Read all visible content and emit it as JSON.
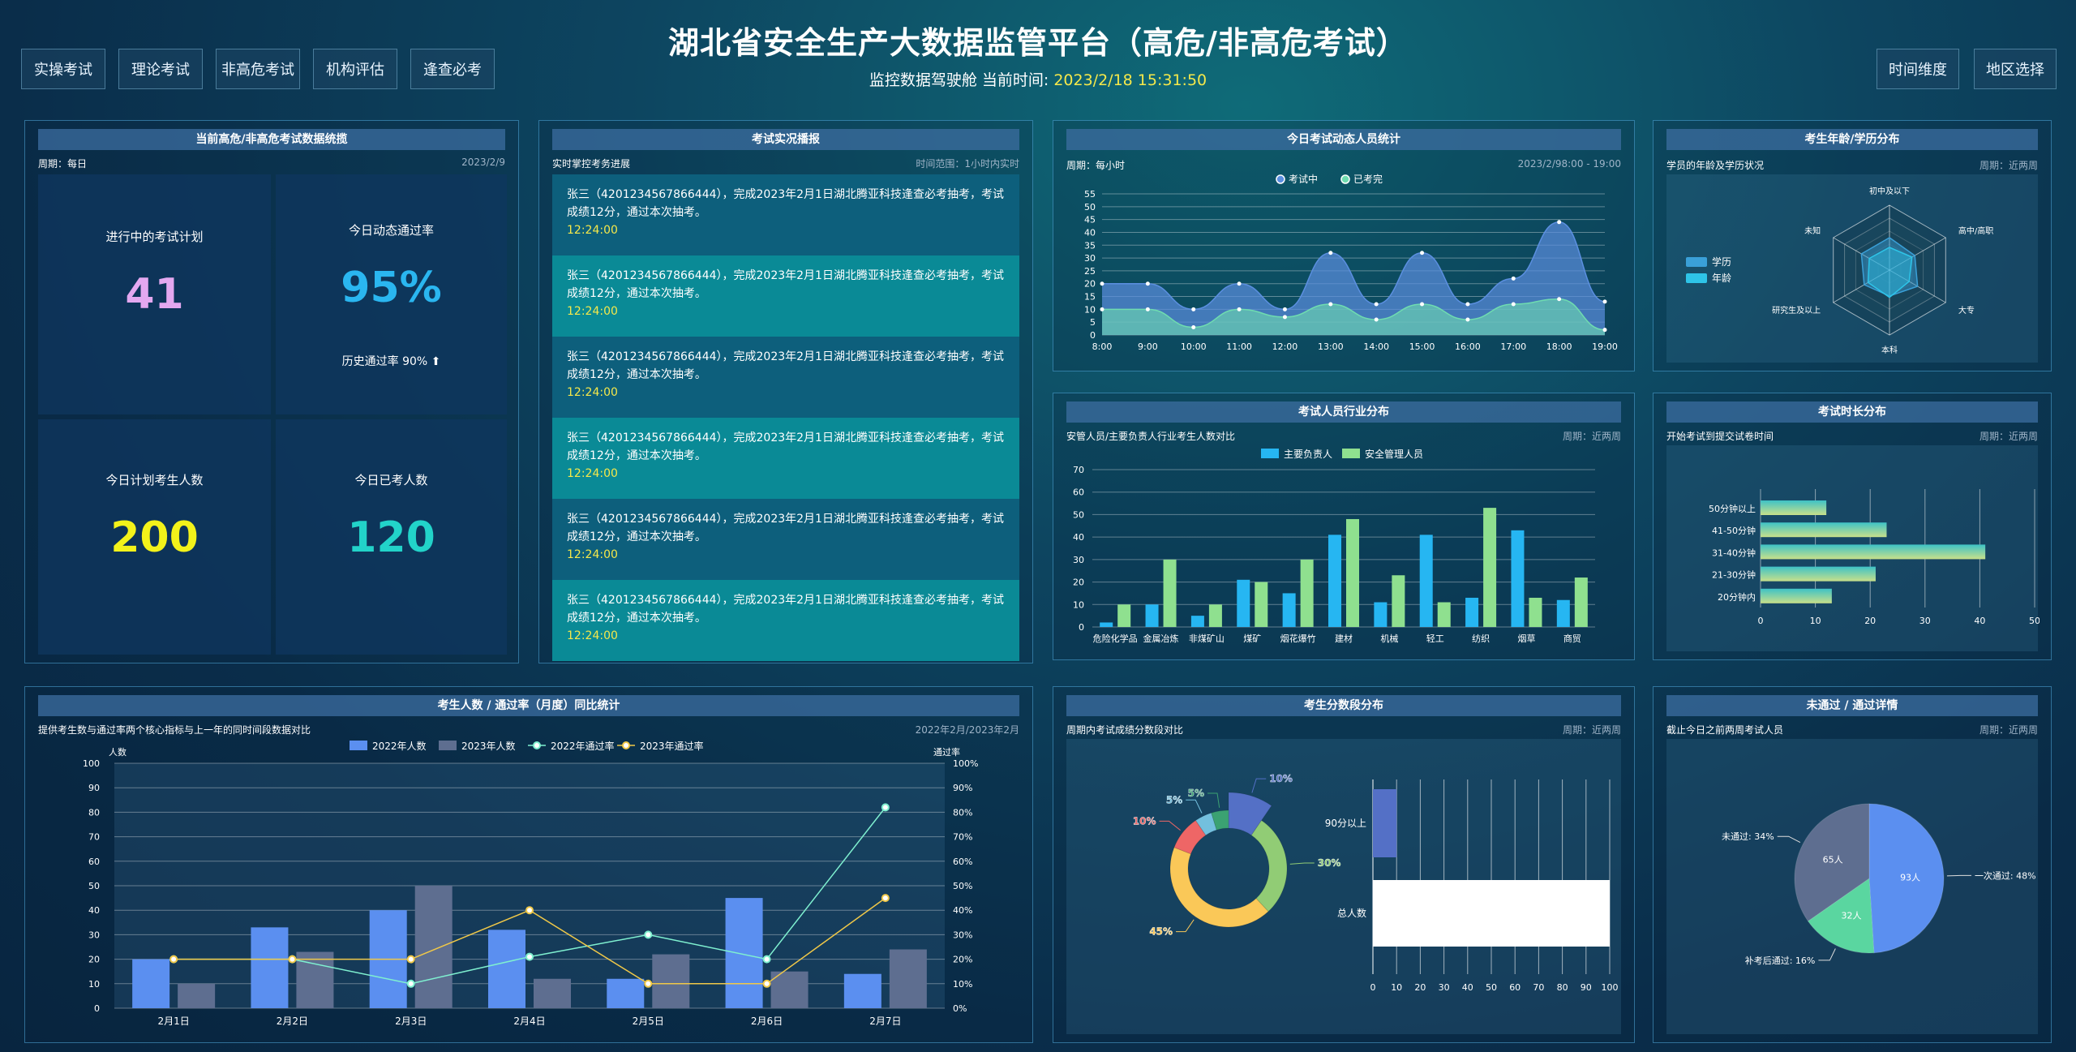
{
  "header": {
    "title": "湖北省安全生产大数据监管平台（高危/非高危考试）",
    "subtitle": "监控数据驾驶舱 当前时间:",
    "time": "2023/2/18 15:31:50"
  },
  "nav_left": [
    "实操考试",
    "理论考试",
    "非高危考试",
    "机构评估",
    "逢查必考"
  ],
  "nav_right": [
    "时间维度",
    "地区选择"
  ],
  "p1": {
    "title": "当前高危/非高危考试数据统揽",
    "sub": "周期：每日",
    "right": "2023/2/9",
    "kpis": [
      {
        "label": "进行中的考试计划",
        "value": "41",
        "color": "#e3a8f0"
      },
      {
        "label": "今日动态通过率",
        "value": "95%",
        "color": "#2ab6f0",
        "extra": "历史通过率 90% ⬆"
      },
      {
        "label": "今日计划考生人数",
        "value": "200",
        "color": "#f3f21a"
      },
      {
        "label": "今日已考人数",
        "value": "120",
        "color": "#22d3c9"
      }
    ]
  },
  "p2": {
    "title": "考试实况播报",
    "sub": "实时掌控考务进展",
    "right": "时间范围：1小时内实时",
    "items": [
      {
        "text": "张三（4201234567866444），完成2023年2月1日湖北腾亚科技逢查必考抽考，考试成绩12分，通过本次抽考。",
        "time": "12:24:00"
      },
      {
        "text": "张三（4201234567866444），完成2023年2月1日湖北腾亚科技逢查必考抽考，考试成绩12分，通过本次抽考。",
        "time": "12:24:00"
      },
      {
        "text": "张三（4201234567866444），完成2023年2月1日湖北腾亚科技逢查必考抽考，考试成绩12分，通过本次抽考。",
        "time": "12:24:00"
      },
      {
        "text": "张三（4201234567866444），完成2023年2月1日湖北腾亚科技逢查必考抽考，考试成绩12分，通过本次抽考。",
        "time": "12:24:00"
      },
      {
        "text": "张三（4201234567866444），完成2023年2月1日湖北腾亚科技逢查必考抽考，考试成绩12分，通过本次抽考。",
        "time": "12:24:00"
      },
      {
        "text": "张三（4201234567866444），完成2023年2月1日湖北腾亚科技逢查必考抽考，考试成绩12分，通过本次抽考。",
        "time": "12:24:00"
      }
    ]
  },
  "p3": {
    "title": "今日考试动态人员统计",
    "sub": "周期：每小时",
    "right": "2023/2/98:00 - 19:00"
  },
  "p4": {
    "title": "考生年龄/学历分布",
    "sub": "学员的年龄及学历状况",
    "right": "周期：近两周"
  },
  "p5": {
    "title": "考试人员行业分布",
    "sub": "安管人员/主要负责人行业考生人数对比",
    "right": "周期：近两周"
  },
  "p6": {
    "title": "考试时长分布",
    "sub": "开始考试到提交试卷时间",
    "right": "周期：近两周"
  },
  "p7": {
    "title": "考生人数 / 通过率（月度）同比统计",
    "sub": "提供考生数与通过率两个核心指标与上一年的同时间段数据对比",
    "right": "2022年2月/2023年2月",
    "left_axis": "人数",
    "right_axis": "通过率"
  },
  "p8": {
    "title": "考生分数段分布",
    "sub": "周期内考试成绩分数段对比",
    "right": "周期：近两周"
  },
  "p9": {
    "title": "未通过 / 通过详情",
    "sub": "截止今日之前两周考试人员",
    "right": "周期：近两周"
  },
  "chart_data": [
    {
      "id": "hourly",
      "type": "area",
      "categories": [
        "8:00",
        "9:00",
        "10:00",
        "11:00",
        "12:00",
        "13:00",
        "14:00",
        "15:00",
        "16:00",
        "17:00",
        "18:00",
        "19:00"
      ],
      "series": [
        {
          "name": "考试中",
          "values": [
            20,
            20,
            10,
            20,
            10,
            32,
            12,
            32,
            12,
            22,
            44,
            13
          ],
          "color": "#5b8fe0"
        },
        {
          "name": "已考完",
          "values": [
            10,
            10,
            3,
            10,
            7,
            12,
            6,
            12,
            6,
            12,
            14,
            2
          ],
          "color": "#6fdcb0"
        }
      ],
      "ylim": [
        0,
        55
      ],
      "yticks": [
        0,
        5,
        10,
        15,
        20,
        25,
        30,
        35,
        40,
        45,
        50,
        55
      ]
    },
    {
      "id": "radar",
      "type": "radar",
      "indicators": [
        "初中及以下",
        "高中/高职",
        "大专",
        "本科",
        "研究生及以上",
        "未知"
      ],
      "series": [
        {
          "name": "学历",
          "color": "#3aa0d8"
        },
        {
          "name": "年龄",
          "color": "#2ec4e8"
        }
      ]
    },
    {
      "id": "industry",
      "type": "bar",
      "categories": [
        "危险化学品",
        "金属冶炼",
        "非煤矿山",
        "煤矿",
        "烟花爆竹",
        "建材",
        "机械",
        "轻工",
        "纺织",
        "烟草",
        "商贸"
      ],
      "series": [
        {
          "name": "主要负责人",
          "values": [
            2,
            10,
            5,
            21,
            15,
            41,
            11,
            41,
            13,
            43,
            12
          ],
          "color": "#26b6f2"
        },
        {
          "name": "安全管理人员",
          "values": [
            10,
            30,
            10,
            20,
            30,
            48,
            23,
            11,
            53,
            13,
            22
          ],
          "color": "#8fe08f"
        }
      ],
      "ylim": [
        0,
        70
      ],
      "yticks": [
        0,
        10,
        20,
        30,
        40,
        50,
        60,
        70
      ]
    },
    {
      "id": "duration",
      "type": "bar",
      "orientation": "horizontal",
      "categories": [
        "50分钟以上",
        "41-50分钟",
        "31-40分钟",
        "21-30分钟",
        "20分钟内"
      ],
      "values": [
        12,
        23,
        41,
        21,
        13
      ],
      "xlim": [
        0,
        50
      ],
      "xticks": [
        0,
        10,
        20,
        30,
        40,
        50
      ]
    },
    {
      "id": "monthly",
      "type": "bar",
      "categories": [
        "2月1日",
        "2月2日",
        "2月3日",
        "2月4日",
        "2月5日",
        "2月6日",
        "2月7日"
      ],
      "series": [
        {
          "name": "2022年人数",
          "values": [
            20,
            33,
            40,
            32,
            12,
            45,
            14
          ],
          "color": "#5b8ff0"
        },
        {
          "name": "2023年人数",
          "values": [
            10,
            23,
            50,
            12,
            22,
            15,
            24
          ],
          "color": "#5e6e90"
        },
        {
          "name": "2022年通过率",
          "type": "line",
          "values": [
            20,
            20,
            10,
            21,
            30,
            20,
            82
          ],
          "color": "#7ff0d0"
        },
        {
          "name": "2023年通过率",
          "type": "line",
          "values": [
            20,
            20,
            20,
            40,
            10,
            10,
            45
          ],
          "color": "#f0c848"
        }
      ],
      "ylim": [
        0,
        100
      ],
      "yticks": [
        0,
        10,
        20,
        30,
        40,
        50,
        60,
        70,
        80,
        90,
        100
      ],
      "y2ticks": [
        "0%",
        "10%",
        "20%",
        "30%",
        "40%",
        "50%",
        "60%",
        "70%",
        "80%",
        "90%",
        "100%"
      ]
    },
    {
      "id": "score_donut",
      "type": "pie",
      "labels": [
        "10%",
        "30%",
        "45%",
        "10%",
        "5%",
        "5%"
      ],
      "values": [
        10,
        30,
        45,
        10,
        5,
        5
      ],
      "colors": [
        "#5470c6",
        "#91cc75",
        "#fac858",
        "#ee6666",
        "#73c0de",
        "#3ba272"
      ]
    },
    {
      "id": "score_bar",
      "type": "bar",
      "orientation": "horizontal",
      "categories": [
        "90分以上",
        "总人数"
      ],
      "values": [
        10,
        100
      ],
      "colors": [
        "#5470c6",
        "#ffffff"
      ],
      "xlim": [
        0,
        100
      ],
      "xticks": [
        0,
        10,
        20,
        30,
        40,
        50,
        60,
        70,
        80,
        90,
        100
      ]
    },
    {
      "id": "pass_pie",
      "type": "pie",
      "labels": [
        "一次通过: 48%",
        "补考后通过: 16%",
        "未通过: 34%"
      ],
      "inner_labels": [
        "93人",
        "32人",
        "65人"
      ],
      "values": [
        48,
        16,
        34
      ],
      "colors": [
        "#5b8ff0",
        "#5ad6a0",
        "#5e6e90"
      ]
    }
  ]
}
